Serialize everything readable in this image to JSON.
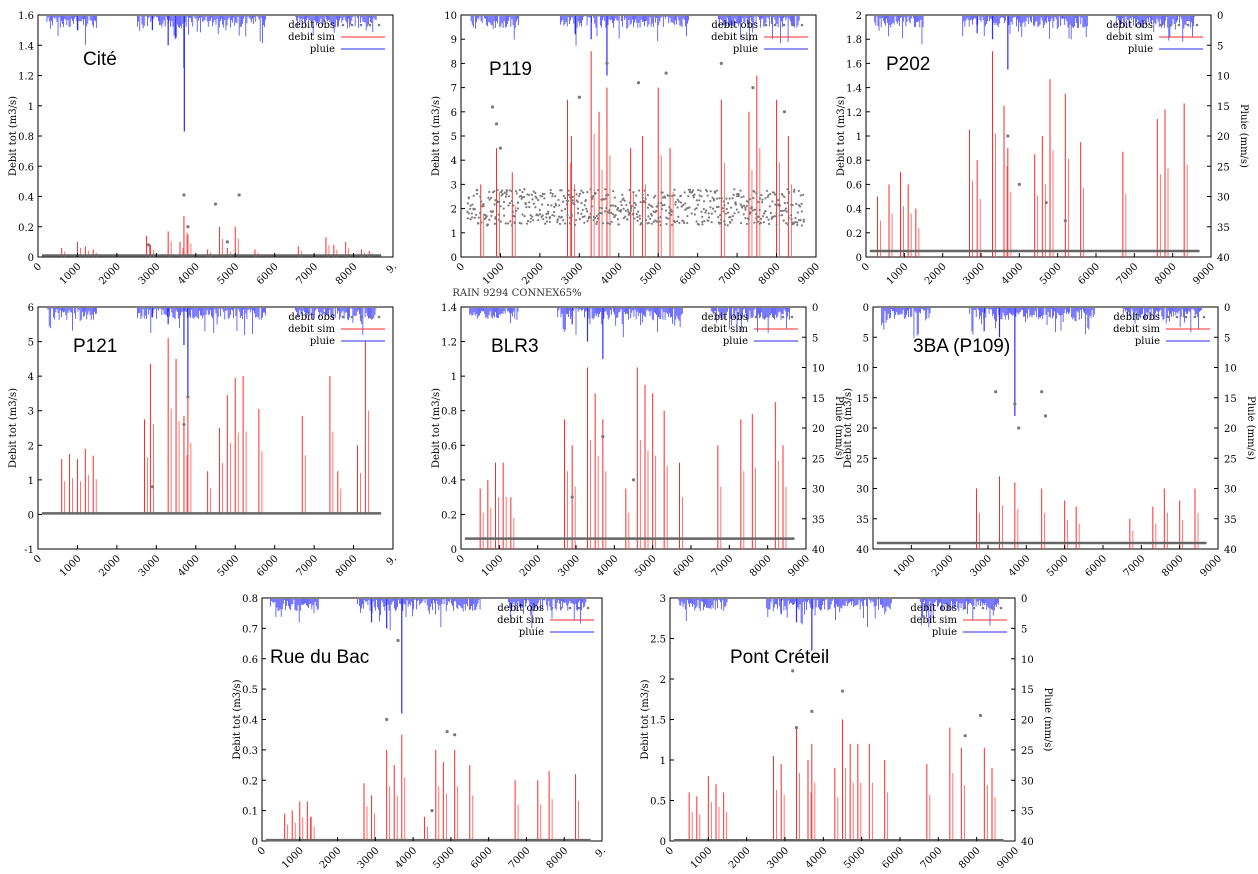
{
  "figure": {
    "caption": "RAIN 9294 CONNEX65%"
  },
  "chart_data": [
    {
      "type": "bar",
      "station": "Cité",
      "ylabel": "Debit tot (m3/s)",
      "y2label": "",
      "ylim": [
        0,
        1.6
      ],
      "yticks": [
        "0",
        "0.2",
        "0.4",
        "0.6",
        "0.8",
        "1",
        "1.2",
        "1.4",
        "1.6"
      ],
      "xlim": [
        0,
        9000
      ],
      "xticks": [
        "0",
        "1000",
        "2000",
        "3000",
        "4000",
        "5000",
        "6000",
        "7000",
        "8000",
        "9."
      ],
      "legend": [
        "debit obs",
        "debit sim",
        "pluie"
      ],
      "legend_position": "top-right",
      "obs_baseline": 0.01,
      "sim_peaks": [
        [
          600,
          0.06
        ],
        [
          1000,
          0.1
        ],
        [
          1200,
          0.07
        ],
        [
          1400,
          0.05
        ],
        [
          2750,
          0.14
        ],
        [
          2850,
          0.08
        ],
        [
          3300,
          0.17
        ],
        [
          3600,
          0.1
        ],
        [
          3700,
          0.27
        ],
        [
          3800,
          0.15
        ],
        [
          4300,
          0.05
        ],
        [
          4600,
          0.2
        ],
        [
          4800,
          0.06
        ],
        [
          5000,
          0.2
        ],
        [
          5500,
          0.05
        ],
        [
          6600,
          0.07
        ],
        [
          7300,
          0.13
        ],
        [
          7500,
          0.08
        ],
        [
          7800,
          0.1
        ],
        [
          8200,
          0.05
        ],
        [
          8400,
          0.04
        ]
      ],
      "obs_points": [
        [
          3700,
          0.41
        ],
        [
          4500,
          0.35
        ],
        [
          5100,
          0.41
        ],
        [
          3800,
          0.2
        ],
        [
          2800,
          0.08
        ],
        [
          4800,
          0.1
        ]
      ],
      "rain_peaks": [
        [
          3700,
          1.25
        ],
        [
          3710,
          0.83
        ],
        [
          3300,
          1.4
        ],
        [
          3500,
          1.45
        ],
        [
          2900,
          1.5
        ],
        [
          1000,
          1.5
        ]
      ]
    },
    {
      "type": "bar",
      "station": "P119",
      "ylabel": "Debit tot (m3/s)",
      "y2label": "",
      "ylim": [
        0,
        10
      ],
      "yticks": [
        "0",
        "1",
        "2",
        "3",
        "4",
        "5",
        "6",
        "7",
        "8",
        "9",
        "10"
      ],
      "xlim": [
        0,
        9000
      ],
      "xticks": [
        "0",
        "1000",
        "2000",
        "3000",
        "4000",
        "5000",
        "6000",
        "7000",
        "8000",
        "9000"
      ],
      "legend": [
        "debit obs",
        "debit sim",
        "pluie"
      ],
      "legend_position": "top-right",
      "obs_band": [
        1.3,
        2.8
      ],
      "sim_peaks": [
        [
          500,
          3
        ],
        [
          900,
          4.5
        ],
        [
          1300,
          3.5
        ],
        [
          2700,
          6.5
        ],
        [
          2800,
          5
        ],
        [
          3300,
          8.5
        ],
        [
          3500,
          6
        ],
        [
          3700,
          7
        ],
        [
          4300,
          4.5
        ],
        [
          4600,
          5
        ],
        [
          5000,
          7
        ],
        [
          5300,
          4.5
        ],
        [
          6600,
          6.5
        ],
        [
          7300,
          6
        ],
        [
          7500,
          7.5
        ],
        [
          8000,
          6.5
        ],
        [
          8300,
          5
        ]
      ],
      "obs_points": [
        [
          800,
          6.2
        ],
        [
          900,
          5.5
        ],
        [
          1000,
          4.5
        ],
        [
          3000,
          6.6
        ],
        [
          3700,
          8
        ],
        [
          4500,
          7.2
        ],
        [
          5200,
          7.6
        ],
        [
          6600,
          8
        ],
        [
          7400,
          7
        ],
        [
          8200,
          6
        ]
      ],
      "rain_peaks": [
        [
          3700,
          7.5
        ],
        [
          3300,
          9
        ],
        [
          2900,
          9.2
        ]
      ]
    },
    {
      "type": "bar",
      "station": "P202",
      "ylabel": "Debit tot (m3/s)",
      "y2label": "Pluie (mm/s)",
      "ylim": [
        0,
        2
      ],
      "yticks": [
        "0",
        "0.2",
        "0.4",
        "0.6",
        "0.8",
        "1",
        "1.2",
        "1.4",
        "1.6",
        "1.8",
        "2"
      ],
      "y2ticks": [
        "0",
        "5",
        "10",
        "15",
        "20",
        "25",
        "30",
        "35",
        "40"
      ],
      "xlim": [
        0,
        9000
      ],
      "xticks": [
        "0",
        "1000",
        "2000",
        "3000",
        "4000",
        "5000",
        "6000",
        "7000",
        "8000",
        "9000"
      ],
      "legend": [
        "debit obs",
        "debit sim",
        "pluie"
      ],
      "legend_position": "top-right",
      "obs_baseline": 0.05,
      "sim_peaks": [
        [
          300,
          0.5
        ],
        [
          600,
          0.6
        ],
        [
          900,
          0.7
        ],
        [
          1100,
          0.6
        ],
        [
          1300,
          0.4
        ],
        [
          2700,
          1.05
        ],
        [
          2900,
          0.8
        ],
        [
          3300,
          1.7
        ],
        [
          3600,
          1.25
        ],
        [
          3700,
          0.9
        ],
        [
          4400,
          0.85
        ],
        [
          4600,
          1.0
        ],
        [
          4800,
          1.47
        ],
        [
          5200,
          1.35
        ],
        [
          5600,
          0.95
        ],
        [
          6700,
          0.87
        ],
        [
          7600,
          1.14
        ],
        [
          7800,
          1.22
        ],
        [
          8300,
          1.27
        ]
      ],
      "obs_points": [
        [
          3700,
          1.0
        ],
        [
          4000,
          0.6
        ],
        [
          4700,
          0.45
        ],
        [
          5200,
          0.3
        ]
      ],
      "rain_peaks": [
        [
          3700,
          1.55
        ],
        [
          3300,
          1.8
        ],
        [
          2900,
          1.85
        ]
      ]
    },
    {
      "type": "bar",
      "station": "P121",
      "ylabel": "Debit tot (m3/s)",
      "y2label": "",
      "ylim": [
        -1,
        6
      ],
      "yticks": [
        "-1",
        "0",
        "1",
        "2",
        "3",
        "4",
        "5",
        "6"
      ],
      "xlim": [
        0,
        9000
      ],
      "xticks": [
        "0",
        "1000",
        "2000",
        "3000",
        "4000",
        "5000",
        "6000",
        "7000",
        "8000",
        "9."
      ],
      "legend": [
        "debit obs",
        "debit sim",
        "pluie"
      ],
      "legend_position": "top-right",
      "obs_baseline": 0.03,
      "sim_peaks": [
        [
          600,
          1.6
        ],
        [
          800,
          1.75
        ],
        [
          1000,
          1.6
        ],
        [
          1200,
          1.9
        ],
        [
          1400,
          1.7
        ],
        [
          2700,
          2.75
        ],
        [
          2850,
          4.35
        ],
        [
          3300,
          5.1
        ],
        [
          3500,
          4.5
        ],
        [
          3700,
          2.85
        ],
        [
          3800,
          3.45
        ],
        [
          4300,
          1.25
        ],
        [
          4600,
          2.5
        ],
        [
          4800,
          3.45
        ],
        [
          5000,
          3.95
        ],
        [
          5200,
          4.0
        ],
        [
          5600,
          3.05
        ],
        [
          6700,
          2.85
        ],
        [
          7400,
          4.0
        ],
        [
          7600,
          1.25
        ],
        [
          8100,
          2.0
        ],
        [
          8300,
          5.0
        ]
      ],
      "obs_points": [
        [
          3700,
          2.6
        ],
        [
          3800,
          3.4
        ],
        [
          2900,
          0.8
        ]
      ],
      "rain_peaks": [
        [
          3700,
          4.9
        ],
        [
          3800,
          3.4
        ],
        [
          3300,
          5.5
        ],
        [
          2900,
          5.7
        ]
      ]
    },
    {
      "type": "bar",
      "station": "BLR3",
      "ylabel": "Debit tot (m3/s)",
      "y2label": "Pluie (mm/s)",
      "ylim": [
        0,
        1.4
      ],
      "yticks": [
        "0",
        "0.2",
        "0.4",
        "0.6",
        "0.8",
        "1",
        "1.2",
        "1.4"
      ],
      "y2ticks": [
        "0",
        "5",
        "10",
        "15",
        "20",
        "25",
        "30",
        "35",
        "40"
      ],
      "xlim": [
        0,
        9000
      ],
      "xticks": [
        "0",
        "1000",
        "2000",
        "3000",
        "4000",
        "5000",
        "6000",
        "7000",
        "8000",
        "9000"
      ],
      "legend": [
        "debit obs",
        "debit sim",
        "pluie"
      ],
      "legend_position": "top-right",
      "obs_baseline": 0.06,
      "sim_peaks": [
        [
          500,
          0.35
        ],
        [
          700,
          0.4
        ],
        [
          900,
          0.5
        ],
        [
          1100,
          0.5
        ],
        [
          1300,
          0.3
        ],
        [
          2700,
          0.75
        ],
        [
          2900,
          0.6
        ],
        [
          3300,
          1.05
        ],
        [
          3500,
          0.9
        ],
        [
          3700,
          0.75
        ],
        [
          4300,
          0.35
        ],
        [
          4600,
          1.05
        ],
        [
          4800,
          0.95
        ],
        [
          5000,
          0.9
        ],
        [
          5300,
          0.8
        ],
        [
          5700,
          0.5
        ],
        [
          6700,
          0.6
        ],
        [
          7300,
          0.75
        ],
        [
          7600,
          0.78
        ],
        [
          8200,
          0.85
        ],
        [
          8400,
          0.6
        ]
      ],
      "obs_points": [
        [
          3700,
          0.65
        ],
        [
          4500,
          0.4
        ],
        [
          2900,
          0.3
        ]
      ],
      "rain_peaks": [
        [
          3700,
          1.1
        ],
        [
          3300,
          1.2
        ],
        [
          2900,
          1.3
        ]
      ]
    },
    {
      "type": "bar",
      "station": "3BA (P109)",
      "ylabel": "Debit tot (m3/s)",
      "y2label": "Pluie (mm/s)",
      "ylim": [
        0,
        40
      ],
      "yticks": [
        "0",
        "5",
        "10",
        "15",
        "20",
        "25",
        "30",
        "35",
        "40"
      ],
      "y2ticks": [
        "0",
        "5",
        "10",
        "15",
        "20",
        "25",
        "30",
        "35",
        "40"
      ],
      "inverted_left_axis": true,
      "xlim": [
        0,
        9000
      ],
      "xticks": [
        "1000",
        "2000",
        "3000",
        "4000",
        "5000",
        "6000",
        "7000",
        "8000",
        "9000"
      ],
      "legend": [
        "debit obs",
        "debit sim",
        "pluie"
      ],
      "legend_position": "top-right",
      "obs_baseline": 39,
      "sim_peaks": [
        [
          2700,
          30
        ],
        [
          3300,
          28
        ],
        [
          3700,
          29
        ],
        [
          4400,
          30
        ],
        [
          5000,
          32
        ],
        [
          5300,
          33
        ],
        [
          6700,
          35
        ],
        [
          7300,
          33
        ],
        [
          7600,
          30
        ],
        [
          8000,
          32
        ],
        [
          8400,
          30
        ]
      ],
      "obs_points": [
        [
          3200,
          14
        ],
        [
          3700,
          16
        ],
        [
          4400,
          14
        ],
        [
          4500,
          18
        ],
        [
          3800,
          20
        ]
      ],
      "rain_peaks": [
        [
          3700,
          18
        ],
        [
          3300,
          5
        ],
        [
          2900,
          4
        ]
      ]
    },
    {
      "type": "bar",
      "station": "Rue du Bac",
      "ylabel": "Debit tot (m3/s)",
      "y2label": "",
      "ylim": [
        0,
        0.8
      ],
      "yticks": [
        "0",
        "0.1",
        "0.2",
        "0.3",
        "0.4",
        "0.5",
        "0.6",
        "0.7",
        "0.8"
      ],
      "xlim": [
        0,
        9000
      ],
      "xticks": [
        "0",
        "1000",
        "2000",
        "3000",
        "4000",
        "5000",
        "6000",
        "7000",
        "8000",
        "9."
      ],
      "legend": [
        "debit obs",
        "debit sim",
        "pluie"
      ],
      "legend_position": "top-right",
      "obs_baseline": 0.003,
      "sim_peaks": [
        [
          600,
          0.09
        ],
        [
          800,
          0.1
        ],
        [
          1000,
          0.13
        ],
        [
          1200,
          0.13
        ],
        [
          1300,
          0.08
        ],
        [
          2700,
          0.19
        ],
        [
          2900,
          0.15
        ],
        [
          3300,
          0.3
        ],
        [
          3500,
          0.25
        ],
        [
          3700,
          0.35
        ],
        [
          4300,
          0.08
        ],
        [
          4600,
          0.3
        ],
        [
          4800,
          0.26
        ],
        [
          5100,
          0.3
        ],
        [
          5500,
          0.25
        ],
        [
          6700,
          0.2
        ],
        [
          7300,
          0.2
        ],
        [
          7600,
          0.23
        ],
        [
          8300,
          0.22
        ]
      ],
      "obs_points": [
        [
          3300,
          0.4
        ],
        [
          3600,
          0.66
        ],
        [
          4900,
          0.36
        ],
        [
          5100,
          0.35
        ],
        [
          4500,
          0.1
        ]
      ],
      "rain_peaks": [
        [
          3700,
          0.42
        ],
        [
          3300,
          0.7
        ],
        [
          2900,
          0.72
        ]
      ]
    },
    {
      "type": "bar",
      "station": "Pont Créteil",
      "ylabel": "Debit tot (m3/s)",
      "y2label": "Pluie (mm/s)",
      "ylim": [
        0,
        3
      ],
      "yticks": [
        "0",
        "0.5",
        "1",
        "1.5",
        "2",
        "2.5",
        "3"
      ],
      "y2ticks": [
        "0",
        "5",
        "10",
        "15",
        "20",
        "25",
        "30",
        "35",
        "40"
      ],
      "xlim": [
        0,
        9000
      ],
      "xticks": [
        "0",
        "1000",
        "2000",
        "3000",
        "4000",
        "5000",
        "6000",
        "7000",
        "8000",
        "9000"
      ],
      "legend": [
        "debit obs",
        "debit sim",
        "pluie"
      ],
      "legend_position": "top-right",
      "obs_baseline": 0.01,
      "sim_peaks": [
        [
          500,
          0.6
        ],
        [
          700,
          0.55
        ],
        [
          1000,
          0.8
        ],
        [
          1200,
          0.7
        ],
        [
          1400,
          0.6
        ],
        [
          2700,
          1.05
        ],
        [
          2900,
          0.95
        ],
        [
          3300,
          1.4
        ],
        [
          3600,
          1.0
        ],
        [
          3700,
          1.2
        ],
        [
          4300,
          0.9
        ],
        [
          4500,
          1.5
        ],
        [
          4700,
          1.2
        ],
        [
          4900,
          1.2
        ],
        [
          5200,
          1.2
        ],
        [
          5600,
          1.0
        ],
        [
          6700,
          0.95
        ],
        [
          7300,
          1.4
        ],
        [
          7600,
          1.15
        ],
        [
          8200,
          1.15
        ],
        [
          8400,
          0.9
        ]
      ],
      "obs_points": [
        [
          3200,
          2.1
        ],
        [
          3300,
          1.4
        ],
        [
          3700,
          1.6
        ],
        [
          4500,
          1.85
        ],
        [
          8100,
          1.55
        ],
        [
          7700,
          1.3
        ]
      ],
      "rain_peaks": [
        [
          3700,
          2.35
        ],
        [
          3300,
          2.7
        ],
        [
          2900,
          2.8
        ]
      ]
    }
  ]
}
